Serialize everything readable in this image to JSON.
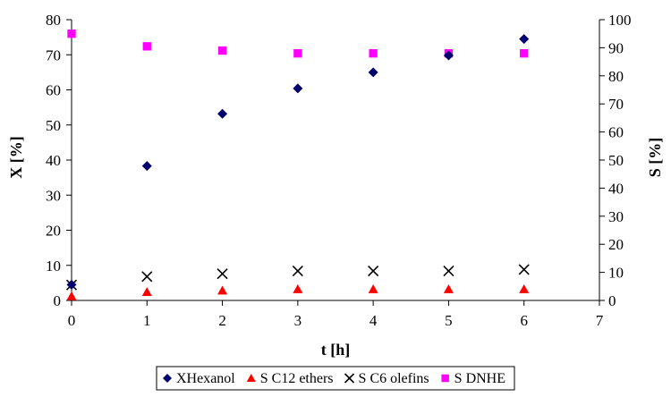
{
  "chart_data": {
    "type": "scatter",
    "title": "",
    "xlabel": "t [h]",
    "ylabel_left": "X [%]",
    "ylabel_right": "S [%]",
    "xlim": [
      0,
      7
    ],
    "ylim_left": [
      0,
      80
    ],
    "ylim_right": [
      0,
      100
    ],
    "x_ticks": [
      0,
      1,
      2,
      3,
      4,
      5,
      6,
      7
    ],
    "y_left_ticks": [
      0,
      10,
      20,
      30,
      40,
      50,
      60,
      70,
      80
    ],
    "y_right_ticks": [
      0,
      10,
      20,
      30,
      40,
      50,
      60,
      70,
      80,
      90,
      100
    ],
    "grid": false,
    "legend_position": "bottom",
    "series": [
      {
        "name": "XHexanol",
        "axis": "left",
        "marker": "diamond",
        "color": "#00006e",
        "x": [
          0,
          1,
          2,
          3,
          4,
          5,
          6
        ],
        "y": [
          4.5,
          38.3,
          53.2,
          60.4,
          65.0,
          69.8,
          74.5
        ]
      },
      {
        "name": "S C12 ethers",
        "axis": "right",
        "marker": "triangle",
        "color": "#ff0000",
        "x": [
          0,
          1,
          2,
          3,
          4,
          5,
          6
        ],
        "y": [
          1.5,
          3.0,
          3.5,
          4.0,
          4.0,
          4.0,
          4.0
        ]
      },
      {
        "name": "S C6 olefins",
        "axis": "right",
        "marker": "x",
        "color": "#000000",
        "x": [
          0,
          1,
          2,
          3,
          4,
          5,
          6
        ],
        "y": [
          5.5,
          8.5,
          9.5,
          10.5,
          10.5,
          10.5,
          11.0
        ]
      },
      {
        "name": "S DNHE",
        "axis": "right",
        "marker": "square",
        "color": "#ff00ff",
        "x": [
          0,
          1,
          2,
          3,
          4,
          5,
          6
        ],
        "y": [
          95.0,
          90.5,
          89.0,
          88.0,
          88.0,
          88.0,
          88.0
        ]
      }
    ]
  }
}
